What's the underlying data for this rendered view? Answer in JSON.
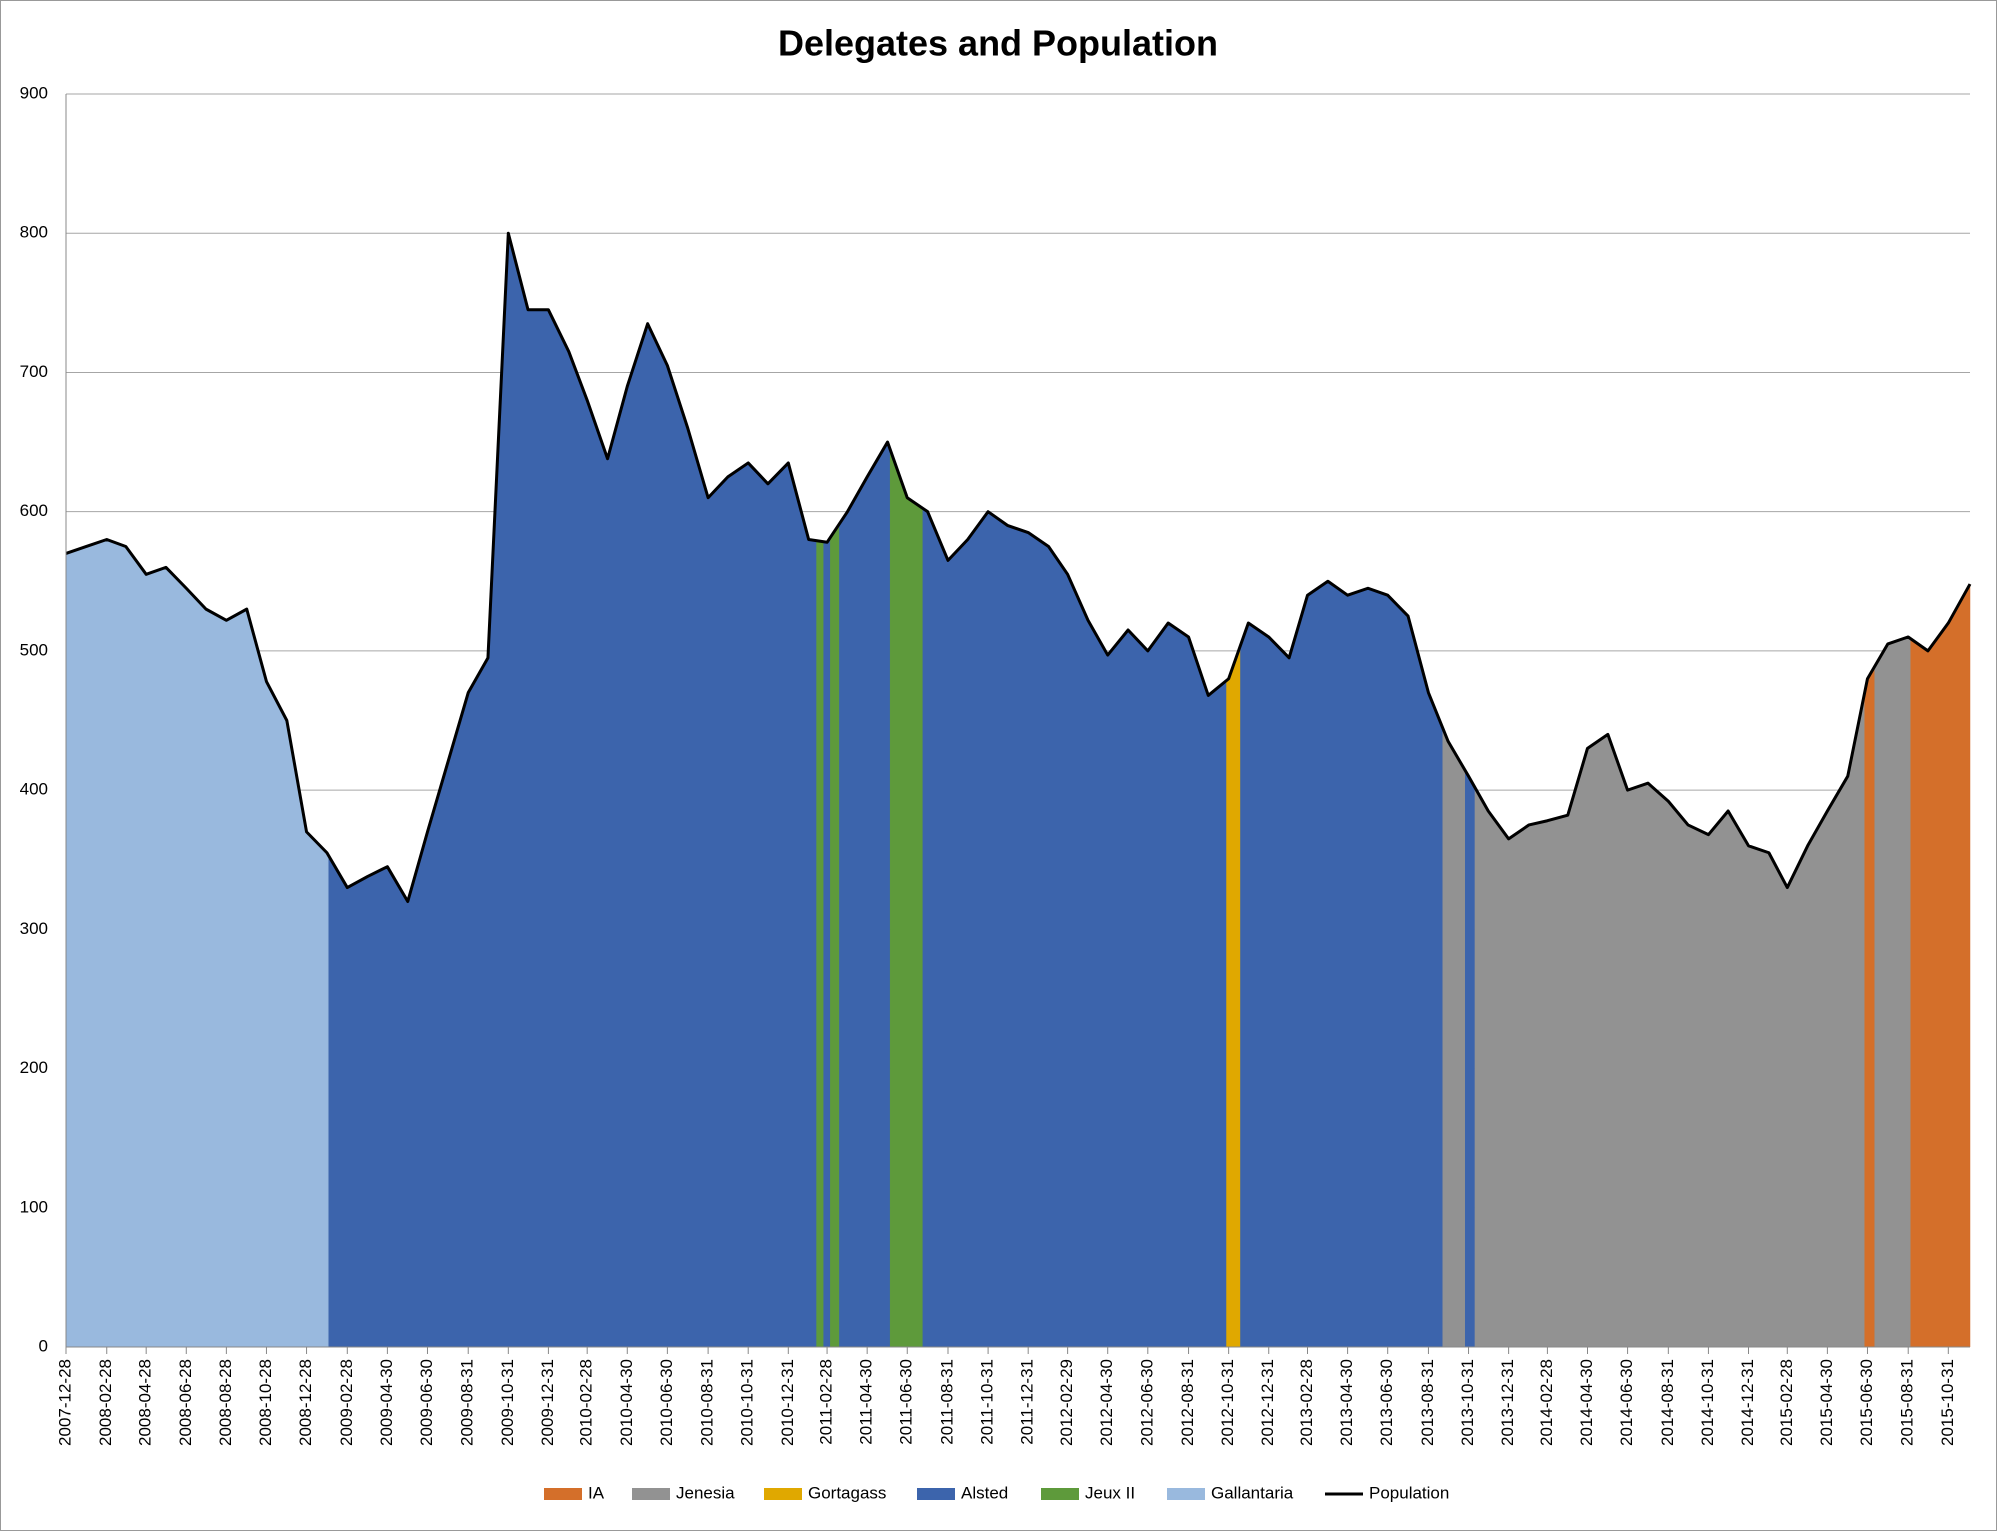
{
  "chart_data": {
    "type": "area",
    "title": "Delegates and Population",
    "xlim": [
      "2007-12-28",
      "2015-12-03"
    ],
    "xticks": [
      "2007-12-28",
      "2008-02-28",
      "2008-04-28",
      "2008-06-28",
      "2008-08-28",
      "2008-10-28",
      "2008-12-28",
      "2009-02-28",
      "2009-04-30",
      "2009-06-30",
      "2009-08-31",
      "2009-10-31",
      "2009-12-31",
      "2010-02-28",
      "2010-04-30",
      "2010-06-30",
      "2010-08-31",
      "2010-10-31",
      "2010-12-31",
      "2011-02-28",
      "2011-04-30",
      "2011-06-30",
      "2011-08-31",
      "2011-10-31",
      "2011-12-31",
      "2012-02-29",
      "2012-04-30",
      "2012-06-30",
      "2012-08-31",
      "2012-10-31",
      "2012-12-31",
      "2013-02-28",
      "2013-04-30",
      "2013-06-30",
      "2013-08-31",
      "2013-10-31",
      "2013-12-31",
      "2014-02-28",
      "2014-04-30",
      "2014-06-30",
      "2014-08-31",
      "2014-10-31",
      "2014-12-31",
      "2015-02-28",
      "2015-04-30",
      "2015-06-30",
      "2015-08-31",
      "2015-10-31"
    ],
    "ylim": [
      0,
      900
    ],
    "yticks": [
      0,
      100,
      200,
      300,
      400,
      500,
      600,
      700,
      800,
      900
    ],
    "grid": true,
    "legend": "bottom",
    "x": [
      "2007-12-28",
      "2008-01-28",
      "2008-02-28",
      "2008-03-28",
      "2008-04-28",
      "2008-05-28",
      "2008-06-28",
      "2008-07-28",
      "2008-08-28",
      "2008-09-28",
      "2008-10-28",
      "2008-11-28",
      "2008-12-28",
      "2009-01-28",
      "2009-02-28",
      "2009-03-31",
      "2009-04-30",
      "2009-05-31",
      "2009-06-30",
      "2009-07-31",
      "2009-08-31",
      "2009-09-30",
      "2009-10-31",
      "2009-11-30",
      "2009-12-31",
      "2010-01-31",
      "2010-02-28",
      "2010-03-31",
      "2010-04-30",
      "2010-05-31",
      "2010-06-30",
      "2010-07-31",
      "2010-08-31",
      "2010-09-30",
      "2010-10-31",
      "2010-11-30",
      "2010-12-31",
      "2011-01-31",
      "2011-02-28",
      "2011-03-31",
      "2011-04-30",
      "2011-05-31",
      "2011-06-30",
      "2011-07-31",
      "2011-08-31",
      "2011-09-30",
      "2011-10-31",
      "2011-11-30",
      "2011-12-31",
      "2012-01-31",
      "2012-02-29",
      "2012-03-31",
      "2012-04-30",
      "2012-05-31",
      "2012-06-30",
      "2012-07-31",
      "2012-08-31",
      "2012-09-30",
      "2012-10-31",
      "2012-11-30",
      "2012-12-31",
      "2013-01-31",
      "2013-02-28",
      "2013-03-31",
      "2013-04-30",
      "2013-05-31",
      "2013-06-30",
      "2013-07-31",
      "2013-08-31",
      "2013-09-30",
      "2013-10-31",
      "2013-11-30",
      "2013-12-31",
      "2014-01-31",
      "2014-02-28",
      "2014-03-31",
      "2014-04-30",
      "2014-05-31",
      "2014-06-30",
      "2014-07-31",
      "2014-08-31",
      "2014-09-30",
      "2014-10-31",
      "2014-11-30",
      "2014-12-31",
      "2015-01-31",
      "2015-02-28",
      "2015-03-31",
      "2015-04-30",
      "2015-05-31",
      "2015-06-30",
      "2015-07-31",
      "2015-08-31",
      "2015-09-30",
      "2015-10-31",
      "2015-12-03"
    ],
    "series": [
      {
        "name": "IA",
        "color": "#d46f2a",
        "periods": [
          [
            "2015-06-25",
            "2015-07-11"
          ],
          [
            "2015-09-03",
            "2015-12-03"
          ]
        ]
      },
      {
        "name": "Jenesia",
        "color": "#929292",
        "periods": [
          [
            "2013-09-21",
            "2013-10-26"
          ],
          [
            "2013-11-09",
            "2015-06-25"
          ],
          [
            "2015-07-11",
            "2015-09-03"
          ]
        ]
      },
      {
        "name": "Gortagass",
        "color": "#e0a800",
        "periods": [
          [
            "2012-10-27",
            "2012-11-18"
          ]
        ]
      },
      {
        "name": "Alsted",
        "color": "#3c64ac",
        "periods": [
          [
            "2009-01-30",
            "2011-02-12"
          ],
          [
            "2011-02-22",
            "2011-03-05"
          ],
          [
            "2011-03-18",
            "2011-06-04"
          ],
          [
            "2011-07-23",
            "2012-10-27"
          ],
          [
            "2012-11-18",
            "2013-09-21"
          ],
          [
            "2013-10-26",
            "2013-11-09"
          ]
        ]
      },
      {
        "name": "Jeux II",
        "color": "#5e9a3b",
        "periods": [
          [
            "2011-02-12",
            "2011-02-22"
          ],
          [
            "2011-03-05",
            "2011-03-18"
          ],
          [
            "2011-06-04",
            "2011-07-23"
          ]
        ]
      },
      {
        "name": "Gallantaria",
        "color": "#99b9de",
        "periods": [
          [
            "2007-12-28",
            "2009-01-30"
          ]
        ]
      },
      {
        "name": "Population",
        "color": "#000000",
        "values": [
          570,
          575,
          580,
          575,
          555,
          560,
          545,
          530,
          522,
          530,
          478,
          450,
          370,
          355,
          330,
          338,
          345,
          320,
          370,
          420,
          470,
          495,
          800,
          745,
          745,
          715,
          680,
          638,
          690,
          735,
          705,
          660,
          610,
          625,
          635,
          620,
          635,
          580,
          578,
          600,
          625,
          650,
          610,
          600,
          565,
          580,
          600,
          590,
          585,
          575,
          555,
          522,
          497,
          515,
          500,
          520,
          510,
          468,
          480,
          520,
          510,
          495,
          540,
          550,
          540,
          545,
          540,
          525,
          470,
          435,
          410,
          385,
          365,
          375,
          378,
          382,
          430,
          440,
          400,
          405,
          392,
          375,
          368,
          385,
          360,
          355,
          330,
          360,
          385,
          410,
          480,
          505,
          510,
          500,
          520,
          548
        ]
      }
    ]
  }
}
